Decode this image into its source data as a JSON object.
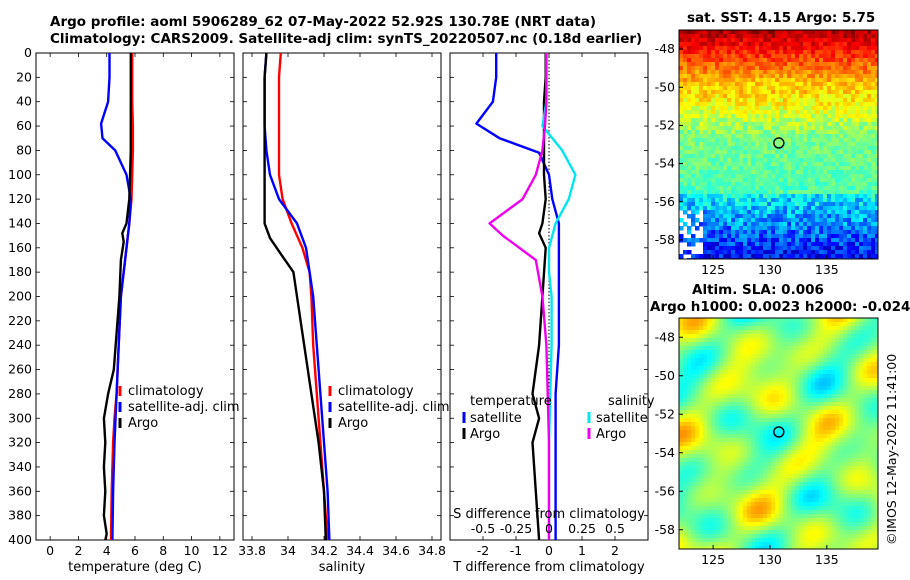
{
  "header": {
    "line1": "Argo profile: aoml 5906289_62 07-May-2022 52.92S 130.78E (NRT data)",
    "line2": "Climatology: CARS2009. Satellite-adj clim: synTS_20220507.nc (0.18d earlier)"
  },
  "colors": {
    "climatology": "#ff0000",
    "satellite": "#0000ff",
    "argo": "#000000",
    "sal_satellite": "#00e5ee",
    "sal_argo": "#ee00ee",
    "zero_line": "#000000"
  },
  "chart_data": [
    {
      "type": "line",
      "name": "temperature-profile",
      "xlabel": "temperature (deg C)",
      "ylabel": "",
      "xlim": [
        -1,
        13
      ],
      "ylim": [
        0,
        400
      ],
      "xticks": [
        "0",
        "2",
        "4",
        "6",
        "8",
        "10",
        "12"
      ],
      "yticks": [
        "0",
        "20",
        "40",
        "60",
        "80",
        "100",
        "120",
        "140",
        "160",
        "180",
        "200",
        "220",
        "240",
        "260",
        "280",
        "300",
        "320",
        "340",
        "360",
        "380",
        "400"
      ],
      "legend": [
        "climatology",
        "satellite-adj. clim",
        "Argo"
      ],
      "series": [
        {
          "name": "climatology",
          "x": [
            5.8,
            5.8,
            5.8,
            5.85,
            5.85,
            5.8,
            5.75,
            5.6,
            5.4,
            5.2,
            5.0,
            4.85,
            4.7,
            4.55,
            4.45,
            4.35,
            4.3
          ],
          "y": [
            0,
            20,
            40,
            60,
            80,
            100,
            120,
            140,
            160,
            180,
            200,
            240,
            280,
            300,
            320,
            360,
            400
          ]
        },
        {
          "name": "satellite-adj. clim",
          "x": [
            4.2,
            4.2,
            4.1,
            3.6,
            3.7,
            4.6,
            5.4,
            5.7,
            5.6,
            5.4,
            5.2,
            5.0,
            4.85,
            4.7,
            4.55,
            4.45,
            4.4
          ],
          "y": [
            0,
            20,
            40,
            58,
            70,
            80,
            100,
            120,
            140,
            160,
            180,
            200,
            240,
            280,
            320,
            360,
            400
          ]
        },
        {
          "name": "Argo",
          "x": [
            5.7,
            5.7,
            5.7,
            5.7,
            5.7,
            5.65,
            5.6,
            5.4,
            5.1,
            5.2,
            5.0,
            4.9,
            4.7,
            4.5,
            4.1,
            3.8,
            3.9,
            3.8,
            3.9,
            3.8,
            4.0,
            3.9
          ],
          "y": [
            0,
            20,
            40,
            60,
            80,
            100,
            120,
            140,
            148,
            155,
            170,
            200,
            230,
            260,
            280,
            300,
            320,
            340,
            360,
            380,
            395,
            400
          ]
        }
      ]
    },
    {
      "type": "line",
      "name": "salinity-profile",
      "xlabel": "salinity",
      "xlim": [
        33.75,
        34.85
      ],
      "ylim": [
        0,
        400
      ],
      "xticks": [
        "33.8",
        "34",
        "34.2",
        "34.4",
        "34.6",
        "34.8"
      ],
      "legend": [
        "climatology",
        "satellite-adj. clim",
        "Argo"
      ],
      "series": [
        {
          "name": "climatology",
          "x": [
            33.96,
            33.95,
            33.95,
            33.95,
            33.95,
            33.95,
            33.97,
            34.02,
            34.08,
            34.12,
            34.13,
            34.14,
            34.16,
            34.18,
            34.2,
            34.22
          ],
          "y": [
            0,
            20,
            40,
            60,
            80,
            100,
            120,
            140,
            160,
            180,
            200,
            240,
            280,
            320,
            360,
            400
          ]
        },
        {
          "name": "satellite-adj. clim",
          "x": [
            33.88,
            33.87,
            33.87,
            33.87,
            33.88,
            33.9,
            33.95,
            34.05,
            34.1,
            34.12,
            34.14,
            34.16,
            34.18,
            34.2,
            34.22,
            34.23
          ],
          "y": [
            0,
            20,
            40,
            60,
            80,
            100,
            120,
            140,
            160,
            180,
            200,
            240,
            280,
            320,
            360,
            400
          ]
        },
        {
          "name": "Argo",
          "x": [
            33.88,
            33.87,
            33.87,
            33.87,
            33.87,
            33.87,
            33.87,
            33.87,
            33.89,
            33.9,
            33.96,
            34.03,
            34.05,
            34.07,
            34.09,
            34.11,
            34.13,
            34.15,
            34.17,
            34.2,
            34.21
          ],
          "y": [
            0,
            20,
            40,
            60,
            80,
            100,
            120,
            140,
            148,
            152,
            165,
            180,
            200,
            220,
            240,
            260,
            280,
            300,
            320,
            360,
            400
          ]
        }
      ]
    },
    {
      "type": "line",
      "name": "difference-profile",
      "xlabel": "T difference from climatology",
      "xlabel_top": "S difference from climatology",
      "xlim": [
        -3,
        3
      ],
      "ylim": [
        0,
        400
      ],
      "xticks": [
        "-2",
        "-1",
        "0",
        "1",
        "2"
      ],
      "xticks_top": [
        "-0.5",
        "-0.25",
        "0",
        "0.25",
        "0.5"
      ],
      "legend_temperature_title": "temperature",
      "legend_salinity_title": "salinity",
      "legend_temperature": [
        "satellite",
        "Argo"
      ],
      "legend_salinity": [
        "satellite",
        "Argo"
      ],
      "series": [
        {
          "name": "T satellite",
          "x": [
            -1.6,
            -1.6,
            -1.7,
            -2.2,
            -1.5,
            -0.3,
            0.0,
            0.1,
            0.3,
            0.3,
            0.3,
            0.3,
            0.2,
            0.2,
            0.2,
            0.2
          ],
          "y": [
            0,
            20,
            40,
            58,
            70,
            82,
            100,
            120,
            140,
            160,
            200,
            240,
            280,
            320,
            360,
            400
          ]
        },
        {
          "name": "T Argo",
          "x": [
            -0.1,
            -0.1,
            -0.15,
            -0.15,
            -0.15,
            -0.15,
            -0.1,
            -0.2,
            -0.3,
            -0.1,
            -0.2,
            -0.3,
            -0.5,
            -0.3,
            -0.5,
            -0.4,
            -0.3
          ],
          "y": [
            0,
            20,
            40,
            60,
            80,
            100,
            120,
            140,
            148,
            160,
            200,
            240,
            280,
            300,
            320,
            360,
            400
          ]
        },
        {
          "name": "S satellite",
          "x": [
            -0.02,
            -0.02,
            -0.02,
            -0.05,
            0.1,
            0.2,
            0.15,
            0.05,
            0.0,
            0.0,
            0.02,
            0.02,
            0.0,
            0.0
          ],
          "y": [
            0,
            20,
            40,
            60,
            80,
            100,
            120,
            140,
            160,
            180,
            200,
            240,
            320,
            400
          ]
        },
        {
          "name": "S Argo",
          "x": [
            -0.02,
            -0.02,
            -0.02,
            -0.03,
            -0.05,
            -0.1,
            -0.2,
            -0.45,
            -0.35,
            -0.1,
            -0.05,
            -0.02,
            0.0,
            0.0
          ],
          "y": [
            0,
            20,
            40,
            60,
            80,
            100,
            120,
            140,
            150,
            170,
            200,
            240,
            320,
            400
          ]
        }
      ]
    },
    {
      "type": "heatmap",
      "name": "sst-map",
      "title": "sat. SST: 4.15 Argo: 5.75",
      "xticks": [
        "125",
        "130",
        "135"
      ],
      "yticks": [
        "-48",
        "-50",
        "-52",
        "-54",
        "-56",
        "-58"
      ]
    },
    {
      "type": "heatmap",
      "name": "sla-map",
      "title": "Altim. SLA: 0.006",
      "subtitle": "Argo h1000: 0.0023 h2000: -0.024",
      "xticks": [
        "125",
        "130",
        "135"
      ],
      "yticks": [
        "-48",
        "-50",
        "-52",
        "-54",
        "-56",
        "-58"
      ]
    }
  ],
  "footer": {
    "credit": "©IMOS 12-May-2022 11:41:00"
  }
}
